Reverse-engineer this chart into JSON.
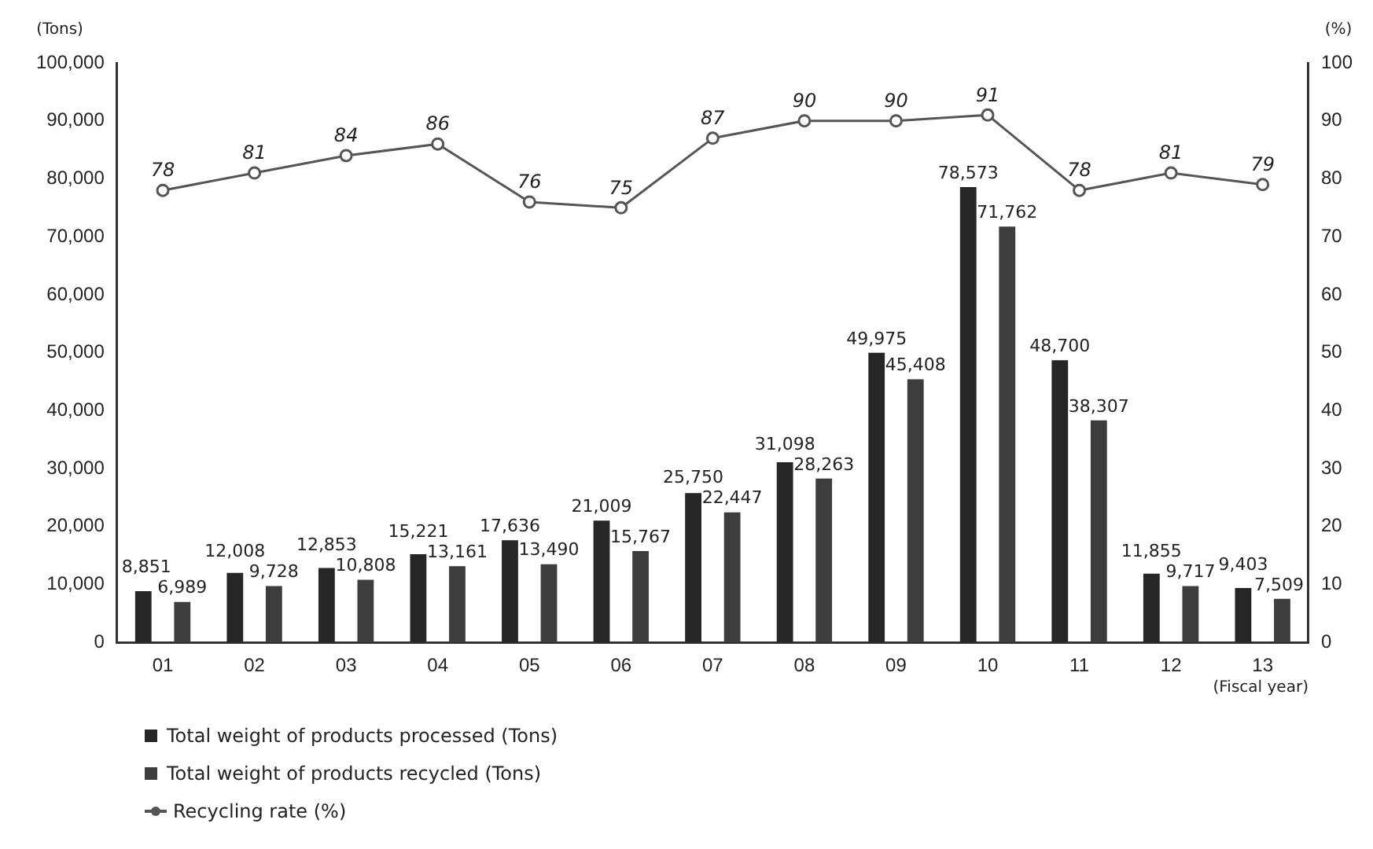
{
  "chart_data": {
    "type": "bar",
    "ylabel": "(Tons)",
    "y2label": "(%)",
    "xlabel": "(Fiscal year)",
    "categories": [
      "01",
      "02",
      "03",
      "04",
      "05",
      "06",
      "07",
      "08",
      "09",
      "10",
      "11",
      "12",
      "13"
    ],
    "series": [
      {
        "name": "Total weight of products processed (Tons)",
        "color": "#262626",
        "values": [
          8851,
          12008,
          12853,
          15221,
          17636,
          21009,
          25750,
          31098,
          49975,
          78573,
          48700,
          11855,
          9403
        ],
        "value_labels": [
          "8,851",
          "12,008",
          "12,853",
          "15,221",
          "17,636",
          "21,009",
          "25,750",
          "31,098",
          "49,975",
          "78,573",
          "48,700",
          "11,855",
          "9,403"
        ]
      },
      {
        "name": "Total weight of products recycled (Tons)",
        "color": "#3d3d3d",
        "values": [
          6989,
          9728,
          10808,
          13161,
          13490,
          15767,
          22447,
          28263,
          45408,
          71762,
          38307,
          9717,
          7509
        ],
        "value_labels": [
          "6,989",
          "9,728",
          "10,808",
          "13,161",
          "13,490",
          "15,767",
          "22,447",
          "28,263",
          "45,408",
          "71,762",
          "38,307",
          "9,717",
          "7,509"
        ]
      },
      {
        "name": "Recycling rate (%)",
        "type": "line",
        "axis": "y2",
        "color": "#555555",
        "marker": "circle",
        "values": [
          78,
          81,
          84,
          86,
          76,
          75,
          87,
          90,
          90,
          91,
          78,
          81,
          79
        ]
      }
    ],
    "ylim": [
      0,
      100000
    ],
    "yticks": [
      {
        "value": 0,
        "label": "0"
      },
      {
        "value": 10000,
        "label": "10,000"
      },
      {
        "value": 20000,
        "label": "20,000"
      },
      {
        "value": 30000,
        "label": "30,000"
      },
      {
        "value": 40000,
        "label": "40,000"
      },
      {
        "value": 50000,
        "label": "50,000"
      },
      {
        "value": 60000,
        "label": "60,000"
      },
      {
        "value": 70000,
        "label": "70,000"
      },
      {
        "value": 80000,
        "label": "80,000"
      },
      {
        "value": 90000,
        "label": "90,000"
      },
      {
        "value": 100000,
        "label": "100,000"
      }
    ],
    "y2lim": [
      0,
      100
    ],
    "y2ticks": [
      0,
      10,
      20,
      30,
      40,
      50,
      60,
      70,
      80,
      90,
      100
    ],
    "data_labels": true,
    "grid": false,
    "legend": "bottom left"
  }
}
